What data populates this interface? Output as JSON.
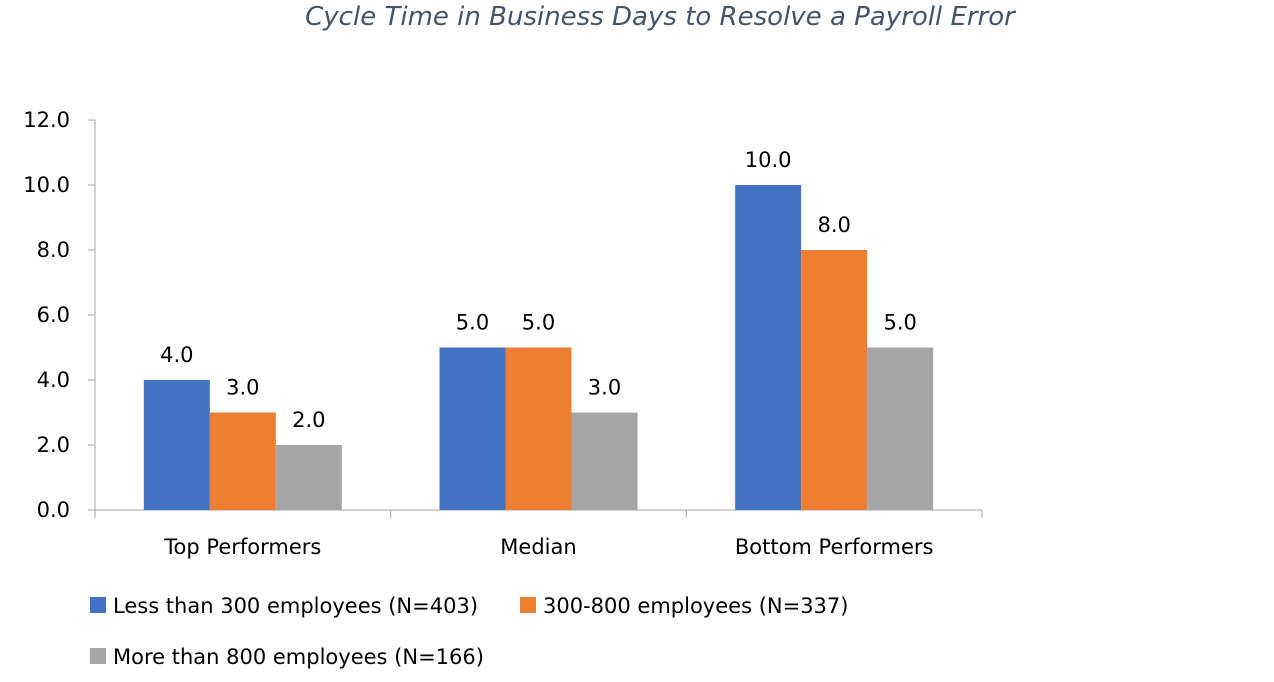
{
  "chart_data": {
    "type": "bar",
    "title": "Cycle Time in Business Days to Resolve a Payroll Error",
    "xlabel": "",
    "ylabel": "",
    "categories": [
      "Top Performers",
      "Median",
      "Bottom Performers"
    ],
    "series": [
      {
        "name": "Less than 300 employees (N=403)",
        "color": "#4472c4",
        "values": [
          4.0,
          5.0,
          10.0
        ]
      },
      {
        "name": "300-800 employees (N=337)",
        "color": "#ed7d31",
        "values": [
          3.0,
          5.0,
          8.0
        ]
      },
      {
        "name": "More than 800 employees (N=166)",
        "color": "#a5a5a5",
        "values": [
          2.0,
          3.0,
          5.0
        ]
      }
    ],
    "ylim": [
      0,
      12
    ],
    "yticks": [
      "0.0",
      "2.0",
      "4.0",
      "6.0",
      "8.0",
      "10.0",
      "12.0"
    ],
    "value_format": "0.0",
    "grid": false,
    "legend_position": "bottom-left"
  }
}
